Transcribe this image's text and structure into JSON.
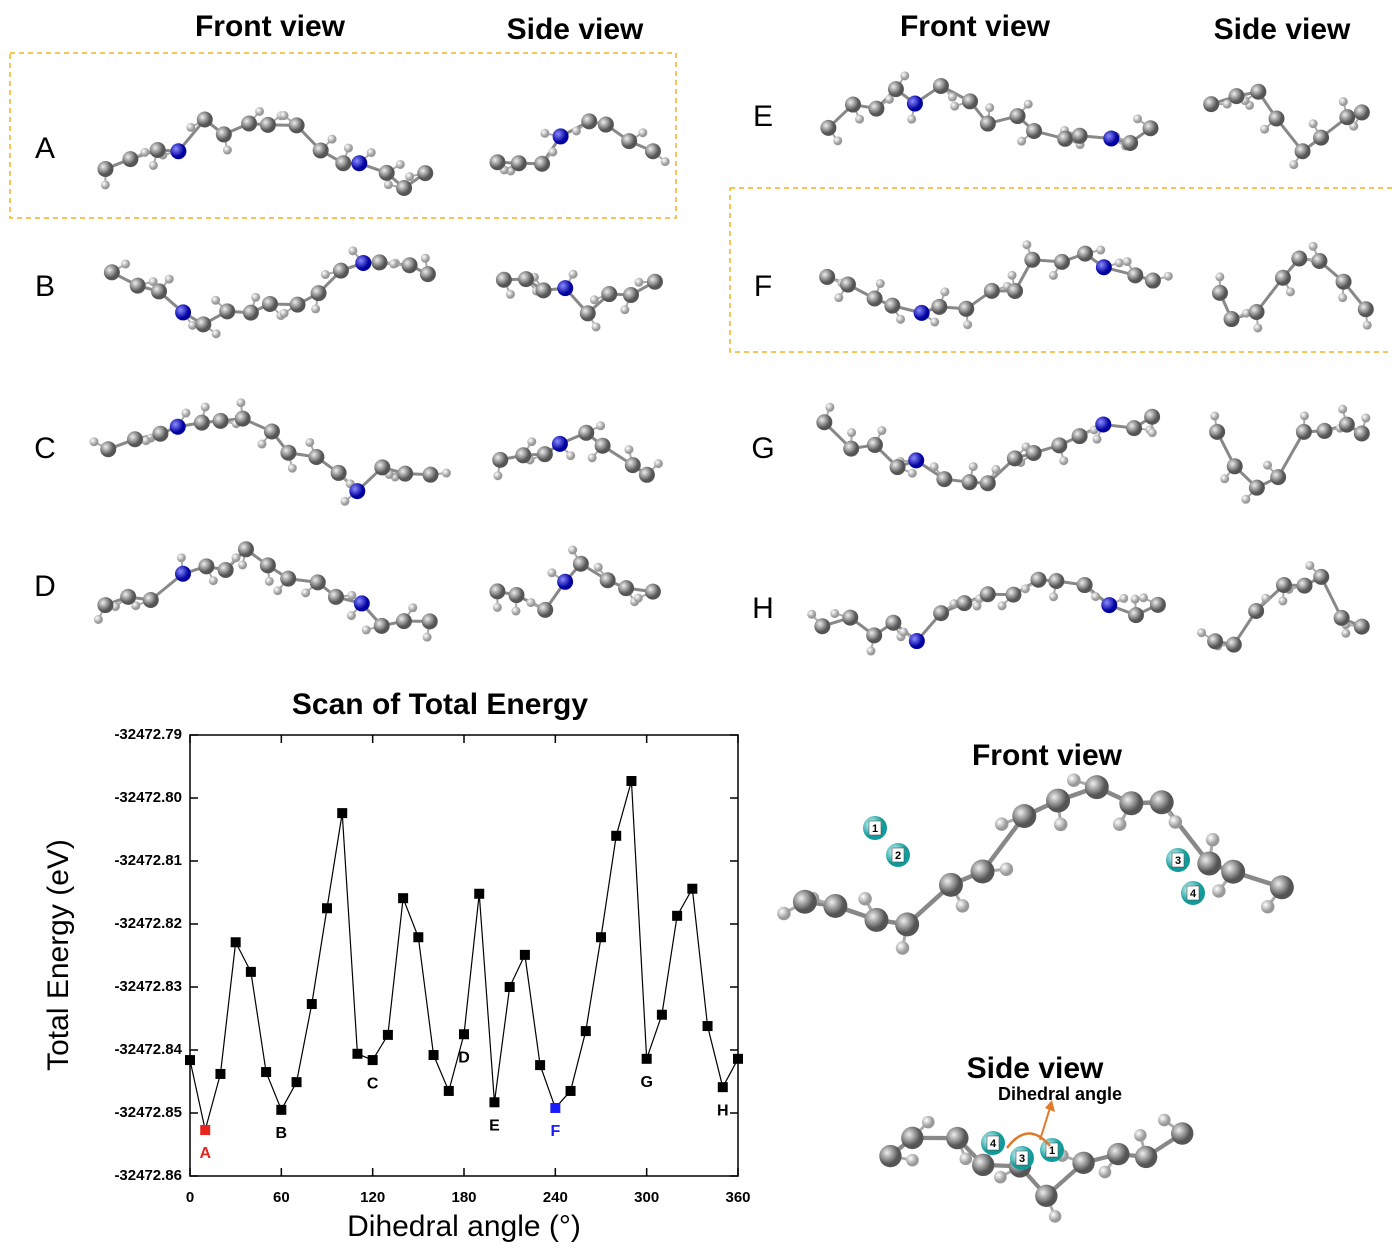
{
  "panels": {
    "left_headers": [
      "Front view",
      "Side view"
    ],
    "right_headers": [
      "Front view",
      "Side view"
    ],
    "left_rows": [
      "A",
      "B",
      "C",
      "D"
    ],
    "right_rows": [
      "E",
      "F",
      "G",
      "H"
    ]
  },
  "structure": {
    "front_title": "Front view",
    "side_title": "Side view",
    "dihedral_label": "Dihedral angle",
    "front_atoms": [
      "1",
      "2",
      "3",
      "4"
    ],
    "side_atoms": [
      "4",
      "3",
      "1"
    ]
  },
  "chart_data": {
    "type": "line",
    "title": "Scan of Total Energy",
    "x_label": "Dihedral angle (°)",
    "y_label": "Total Energy (eV)",
    "x": [
      0,
      10,
      20,
      30,
      40,
      50,
      60,
      70,
      80,
      90,
      100,
      110,
      120,
      130,
      140,
      150,
      160,
      170,
      180,
      190,
      200,
      210,
      220,
      230,
      240,
      250,
      260,
      270,
      280,
      290,
      300,
      310,
      320,
      330,
      340,
      350,
      360
    ],
    "values": [
      -32472.8416,
      -32472.8527,
      -32472.8438,
      -32472.8229,
      -32472.8276,
      -32472.8435,
      -32472.8495,
      -32472.8451,
      -32472.8327,
      -32472.8175,
      -32472.8024,
      -32472.8406,
      -32472.8416,
      -32472.8376,
      -32472.8159,
      -32472.8221,
      -32472.8408,
      -32472.8465,
      -32472.8375,
      -32472.8152,
      -32472.8483,
      -32472.83,
      -32472.8249,
      -32472.8424,
      -32472.8492,
      -32472.8465,
      -32472.837,
      -32472.8221,
      -32472.806,
      -32472.7973,
      -32472.8414,
      -32472.8344,
      -32472.8187,
      -32472.8144,
      -32472.8362,
      -32472.8459,
      -32472.8414
    ],
    "color": "#000000",
    "xlim": [
      0,
      360
    ],
    "xticks": [
      0,
      60,
      120,
      180,
      240,
      300,
      360
    ],
    "ylim": [
      -32472.86,
      -32472.79
    ],
    "yticks": [
      -32472.86,
      -32472.85,
      -32472.84,
      -32472.83,
      -32472.82,
      -32472.81,
      {
        "value": -32472.8,
        "label": "-32472.80"
      },
      -32472.79
    ],
    "annotations": [
      {
        "text": "A",
        "x": 10,
        "color": "#e8251f"
      },
      {
        "text": "B",
        "x": 60
      },
      {
        "text": "C",
        "x": 120
      },
      {
        "text": "D",
        "x": 180
      },
      {
        "text": "E",
        "x": 200
      },
      {
        "text": "F",
        "x": 240,
        "color": "#1a1aff"
      },
      {
        "text": "G",
        "x": 300
      },
      {
        "text": "H",
        "x": 350
      }
    ]
  }
}
